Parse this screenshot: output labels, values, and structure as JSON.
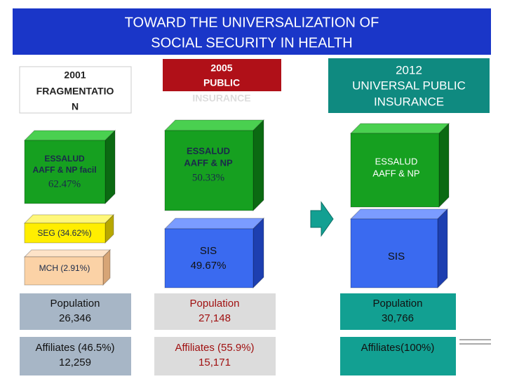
{
  "title": [
    "TOWARD THE UNIVERSALIZATION OF",
    "SOCIAL SECURITY IN HEALTH"
  ],
  "columns": [
    {
      "header": [
        "2001",
        "FRAGMENTATIO",
        "N"
      ],
      "essalud": [
        "ESSALUD",
        "AAFF & NP facil",
        "62.47%"
      ],
      "seg": "SEG (34.62%)",
      "mch": "MCH (2.91%)",
      "population": [
        "Population",
        "26,346"
      ],
      "affiliates": [
        "Affiliates (46.5%)",
        "12,259"
      ]
    },
    {
      "header": [
        "2005",
        "PUBLIC",
        "INSURANCE"
      ],
      "essalud": [
        "ESSALUD",
        "AAFF & NP",
        "50.33%"
      ],
      "sis": [
        "SIS",
        "49.67%"
      ],
      "population": [
        "Population",
        "27,148"
      ],
      "affiliates": [
        "Affiliates (55.9%)",
        "15,171"
      ]
    },
    {
      "header": [
        "2012",
        "UNIVERSAL PUBLIC",
        "INSURANCE"
      ],
      "essalud": [
        "ESSALUD",
        "AAFF & NP"
      ],
      "sis": [
        "SIS"
      ],
      "population": [
        "Population",
        "30,766"
      ],
      "affiliates": [
        "Affiliates(100%)"
      ]
    }
  ]
}
